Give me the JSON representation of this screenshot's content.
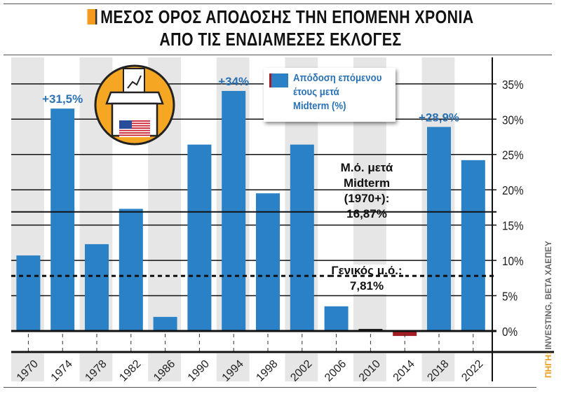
{
  "title": {
    "line1": "ΜΕΣΟΣ ΟΡΟΣ ΑΠΟΔΟΣΗΣ ΤΗΝ ΕΠΟΜΕΝΗ ΧΡΟΝΙΑ",
    "line2": "ΑΠΟ ΤΙΣ ΕΝΔΙΑΜΕΣΕΣ ΕΚΛΟΓΕΣ"
  },
  "source": {
    "label": "ΠΗΓΗ:",
    "text": "INVESTING, BETA ΧΑΕΠΕΥ"
  },
  "colors": {
    "positive": "#2a81c6",
    "negative": "#a51d24",
    "band": "#e6e6e6",
    "accent": "#f39a1f"
  },
  "chart_data": {
    "type": "bar",
    "title": "ΜΕΣΟΣ ΟΡΟΣ ΑΠΟΔΟΣΗΣ ΤΗΝ ΕΠΟΜΕΝΗ ΧΡΟΝΙΑ ΑΠΟ ΤΙΣ ΕΝΔΙΑΜΕΣΕΣ ΕΚΛΟΓΕΣ",
    "categories": [
      "1970",
      "1974",
      "1978",
      "1982",
      "1986",
      "1990",
      "1994",
      "1998",
      "2002",
      "2006",
      "2010",
      "2014",
      "2018",
      "2022"
    ],
    "values": [
      10.7,
      31.5,
      12.3,
      17.3,
      2.0,
      26.4,
      34.0,
      19.5,
      26.4,
      3.5,
      0.3,
      -0.7,
      28.9,
      24.2
    ],
    "data_labels": {
      "1974": "+31,5%",
      "1994": "+34%",
      "2018": "+28,9%"
    },
    "ylim": [
      -3,
      38
    ],
    "yticks": [
      0,
      5,
      10,
      15,
      20,
      25,
      30,
      35
    ],
    "ytick_labels": [
      "0%",
      "5%",
      "10%",
      "15%",
      "20%",
      "25%",
      "30%",
      "35%"
    ],
    "legend": {
      "label": "Απόδοση επόμενου\nέτους μετά\nMidterm (%)",
      "placement": "top-center"
    },
    "reference_lines": [
      {
        "value": 16.87,
        "style": "solid",
        "label": "Μ.ό. μετά\nMidterm\n(1970+):\n16,87%"
      },
      {
        "value": 7.81,
        "style": "dashed",
        "label": "Γενικός μ.ό.:\n7,81%"
      }
    ],
    "grid": true
  }
}
